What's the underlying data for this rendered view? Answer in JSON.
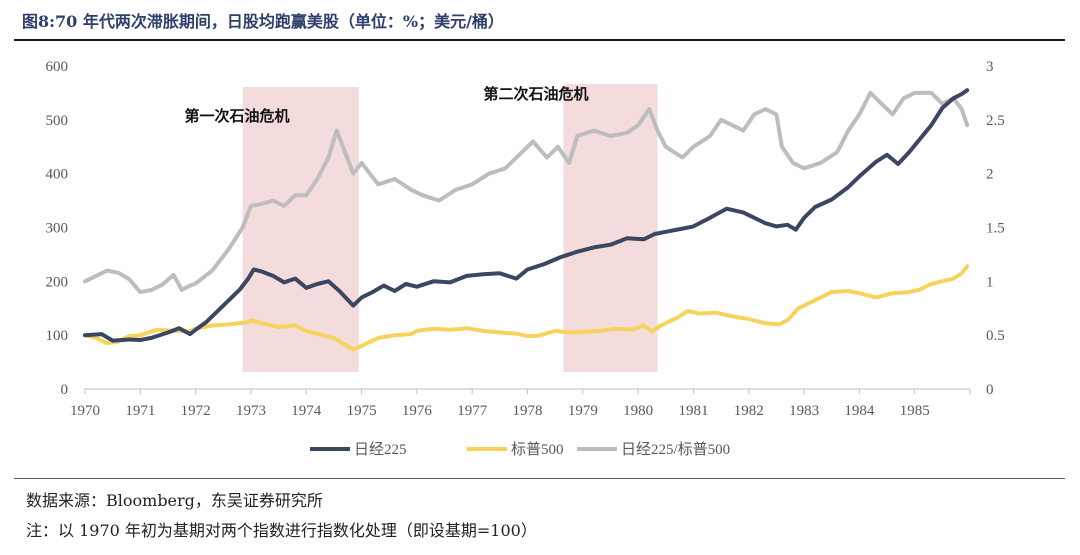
{
  "header": {
    "title": "图8:70 年代两次滞胀期间，日股均跑赢美股（单位：%；美元/桶）"
  },
  "footer": {
    "source": "数据来源：Bloomberg，东吴证券研究所",
    "note": "注：以 1970 年初为基期对两个指数进行指数化处理（即设基期=100）"
  },
  "colors": {
    "nikkei": "#3b4661",
    "sp500": "#f7d35e",
    "ratio": "#bdbdbd",
    "shade": "#f4dcdc"
  },
  "chart_data": {
    "type": "line",
    "title": "",
    "x_range": [
      1970,
      1986
    ],
    "x_ticks": [
      "1970",
      "1971",
      "1972",
      "1973",
      "1974",
      "1975",
      "1976",
      "1977",
      "1978",
      "1979",
      "1980",
      "1981",
      "1982",
      "1983",
      "1984",
      "1985"
    ],
    "y_left": {
      "range": [
        0,
        600
      ],
      "ticks": [
        "0",
        "100",
        "200",
        "300",
        "400",
        "500",
        "600"
      ]
    },
    "y_right": {
      "range": [
        0,
        3
      ],
      "ticks": [
        "0",
        "0.5",
        "1",
        "1.5",
        "2",
        "2.5",
        "3"
      ]
    },
    "grid": false,
    "legend_position": "bottom",
    "shaded_periods": [
      {
        "label": "第一次石油危机",
        "start": 1972.85,
        "end": 1974.95
      },
      {
        "label": "第二次石油危机",
        "start": 1978.65,
        "end": 1980.35
      }
    ],
    "series": [
      {
        "name": "日经225",
        "axis": "left",
        "points": [
          [
            1970.0,
            100
          ],
          [
            1970.3,
            102
          ],
          [
            1970.5,
            90
          ],
          [
            1970.8,
            92
          ],
          [
            1971.0,
            91
          ],
          [
            1971.2,
            95
          ],
          [
            1971.5,
            105
          ],
          [
            1971.7,
            113
          ],
          [
            1971.9,
            102
          ],
          [
            1972.0,
            110
          ],
          [
            1972.2,
            125
          ],
          [
            1972.5,
            155
          ],
          [
            1972.8,
            185
          ],
          [
            1972.95,
            205
          ],
          [
            1973.05,
            222
          ],
          [
            1973.2,
            218
          ],
          [
            1973.4,
            210
          ],
          [
            1973.6,
            198
          ],
          [
            1973.8,
            205
          ],
          [
            1974.0,
            188
          ],
          [
            1974.2,
            195
          ],
          [
            1974.4,
            200
          ],
          [
            1974.6,
            182
          ],
          [
            1974.85,
            155
          ],
          [
            1975.0,
            170
          ],
          [
            1975.2,
            180
          ],
          [
            1975.4,
            192
          ],
          [
            1975.6,
            182
          ],
          [
            1975.8,
            195
          ],
          [
            1976.0,
            190
          ],
          [
            1976.3,
            200
          ],
          [
            1976.6,
            198
          ],
          [
            1976.9,
            210
          ],
          [
            1977.2,
            213
          ],
          [
            1977.5,
            215
          ],
          [
            1977.8,
            205
          ],
          [
            1978.0,
            222
          ],
          [
            1978.3,
            232
          ],
          [
            1978.6,
            245
          ],
          [
            1978.9,
            255
          ],
          [
            1979.2,
            263
          ],
          [
            1979.5,
            268
          ],
          [
            1979.8,
            280
          ],
          [
            1980.1,
            278
          ],
          [
            1980.3,
            288
          ],
          [
            1980.5,
            292
          ],
          [
            1980.8,
            298
          ],
          [
            1981.0,
            302
          ],
          [
            1981.3,
            318
          ],
          [
            1981.6,
            335
          ],
          [
            1981.9,
            328
          ],
          [
            1982.1,
            318
          ],
          [
            1982.3,
            308
          ],
          [
            1982.5,
            302
          ],
          [
            1982.7,
            305
          ],
          [
            1982.85,
            296
          ],
          [
            1983.0,
            318
          ],
          [
            1983.2,
            338
          ],
          [
            1983.5,
            352
          ],
          [
            1983.8,
            375
          ],
          [
            1984.0,
            395
          ],
          [
            1984.3,
            422
          ],
          [
            1984.5,
            435
          ],
          [
            1984.7,
            418
          ],
          [
            1984.9,
            440
          ],
          [
            1985.1,
            465
          ],
          [
            1985.3,
            490
          ],
          [
            1985.5,
            522
          ],
          [
            1985.7,
            540
          ],
          [
            1985.85,
            548
          ],
          [
            1985.95,
            555
          ]
        ]
      },
      {
        "name": "标普500",
        "axis": "left",
        "points": [
          [
            1970.0,
            100
          ],
          [
            1970.2,
            95
          ],
          [
            1970.4,
            85
          ],
          [
            1970.6,
            88
          ],
          [
            1970.8,
            98
          ],
          [
            1971.0,
            100
          ],
          [
            1971.3,
            110
          ],
          [
            1971.6,
            108
          ],
          [
            1971.9,
            108
          ],
          [
            1972.0,
            112
          ],
          [
            1972.3,
            118
          ],
          [
            1972.6,
            120
          ],
          [
            1972.95,
            124
          ],
          [
            1973.0,
            128
          ],
          [
            1973.2,
            122
          ],
          [
            1973.5,
            115
          ],
          [
            1973.8,
            118
          ],
          [
            1974.0,
            108
          ],
          [
            1974.3,
            100
          ],
          [
            1974.5,
            95
          ],
          [
            1974.7,
            82
          ],
          [
            1974.85,
            73
          ],
          [
            1975.0,
            80
          ],
          [
            1975.3,
            95
          ],
          [
            1975.6,
            100
          ],
          [
            1975.9,
            102
          ],
          [
            1976.0,
            108
          ],
          [
            1976.3,
            112
          ],
          [
            1976.6,
            110
          ],
          [
            1976.9,
            113
          ],
          [
            1977.2,
            108
          ],
          [
            1977.5,
            105
          ],
          [
            1977.8,
            103
          ],
          [
            1978.0,
            98
          ],
          [
            1978.2,
            99
          ],
          [
            1978.5,
            108
          ],
          [
            1978.75,
            105
          ],
          [
            1979.0,
            106
          ],
          [
            1979.3,
            108
          ],
          [
            1979.6,
            112
          ],
          [
            1979.9,
            110
          ],
          [
            1980.1,
            118
          ],
          [
            1980.25,
            107
          ],
          [
            1980.45,
            120
          ],
          [
            1980.7,
            132
          ],
          [
            1980.9,
            145
          ],
          [
            1981.1,
            140
          ],
          [
            1981.4,
            142
          ],
          [
            1981.7,
            135
          ],
          [
            1982.0,
            130
          ],
          [
            1982.3,
            122
          ],
          [
            1982.55,
            120
          ],
          [
            1982.7,
            128
          ],
          [
            1982.9,
            150
          ],
          [
            1983.2,
            165
          ],
          [
            1983.5,
            180
          ],
          [
            1983.8,
            182
          ],
          [
            1984.0,
            178
          ],
          [
            1984.3,
            170
          ],
          [
            1984.6,
            178
          ],
          [
            1984.9,
            180
          ],
          [
            1985.1,
            185
          ],
          [
            1985.3,
            195
          ],
          [
            1985.5,
            200
          ],
          [
            1985.7,
            205
          ],
          [
            1985.85,
            215
          ],
          [
            1985.95,
            228
          ]
        ]
      },
      {
        "name": "日经225/标普500",
        "axis": "right",
        "points": [
          [
            1970.0,
            1.0
          ],
          [
            1970.2,
            1.05
          ],
          [
            1970.4,
            1.1
          ],
          [
            1970.6,
            1.08
          ],
          [
            1970.8,
            1.02
          ],
          [
            1971.0,
            0.9
          ],
          [
            1971.2,
            0.92
          ],
          [
            1971.4,
            0.97
          ],
          [
            1971.6,
            1.06
          ],
          [
            1971.75,
            0.92
          ],
          [
            1971.9,
            0.96
          ],
          [
            1972.0,
            0.98
          ],
          [
            1972.3,
            1.1
          ],
          [
            1972.6,
            1.3
          ],
          [
            1972.85,
            1.5
          ],
          [
            1973.0,
            1.7
          ],
          [
            1973.2,
            1.72
          ],
          [
            1973.4,
            1.75
          ],
          [
            1973.6,
            1.7
          ],
          [
            1973.8,
            1.8
          ],
          [
            1974.0,
            1.8
          ],
          [
            1974.2,
            1.95
          ],
          [
            1974.4,
            2.15
          ],
          [
            1974.55,
            2.4
          ],
          [
            1974.7,
            2.2
          ],
          [
            1974.85,
            2.0
          ],
          [
            1975.0,
            2.1
          ],
          [
            1975.3,
            1.9
          ],
          [
            1975.6,
            1.95
          ],
          [
            1975.9,
            1.85
          ],
          [
            1976.1,
            1.8
          ],
          [
            1976.4,
            1.75
          ],
          [
            1976.7,
            1.85
          ],
          [
            1977.0,
            1.9
          ],
          [
            1977.3,
            2.0
          ],
          [
            1977.6,
            2.05
          ],
          [
            1977.9,
            2.2
          ],
          [
            1978.1,
            2.3
          ],
          [
            1978.35,
            2.15
          ],
          [
            1978.55,
            2.25
          ],
          [
            1978.75,
            2.1
          ],
          [
            1978.9,
            2.35
          ],
          [
            1979.2,
            2.4
          ],
          [
            1979.5,
            2.35
          ],
          [
            1979.8,
            2.38
          ],
          [
            1980.0,
            2.45
          ],
          [
            1980.2,
            2.6
          ],
          [
            1980.35,
            2.4
          ],
          [
            1980.5,
            2.25
          ],
          [
            1980.8,
            2.15
          ],
          [
            1981.0,
            2.25
          ],
          [
            1981.3,
            2.35
          ],
          [
            1981.5,
            2.5
          ],
          [
            1981.7,
            2.45
          ],
          [
            1981.9,
            2.4
          ],
          [
            1982.1,
            2.55
          ],
          [
            1982.3,
            2.6
          ],
          [
            1982.5,
            2.55
          ],
          [
            1982.6,
            2.25
          ],
          [
            1982.8,
            2.1
          ],
          [
            1983.0,
            2.05
          ],
          [
            1983.3,
            2.1
          ],
          [
            1983.6,
            2.2
          ],
          [
            1983.8,
            2.4
          ],
          [
            1984.0,
            2.55
          ],
          [
            1984.2,
            2.75
          ],
          [
            1984.4,
            2.65
          ],
          [
            1984.6,
            2.55
          ],
          [
            1984.8,
            2.7
          ],
          [
            1985.0,
            2.75
          ],
          [
            1985.3,
            2.75
          ],
          [
            1985.5,
            2.65
          ],
          [
            1985.7,
            2.7
          ],
          [
            1985.85,
            2.6
          ],
          [
            1985.95,
            2.45
          ]
        ]
      }
    ]
  }
}
